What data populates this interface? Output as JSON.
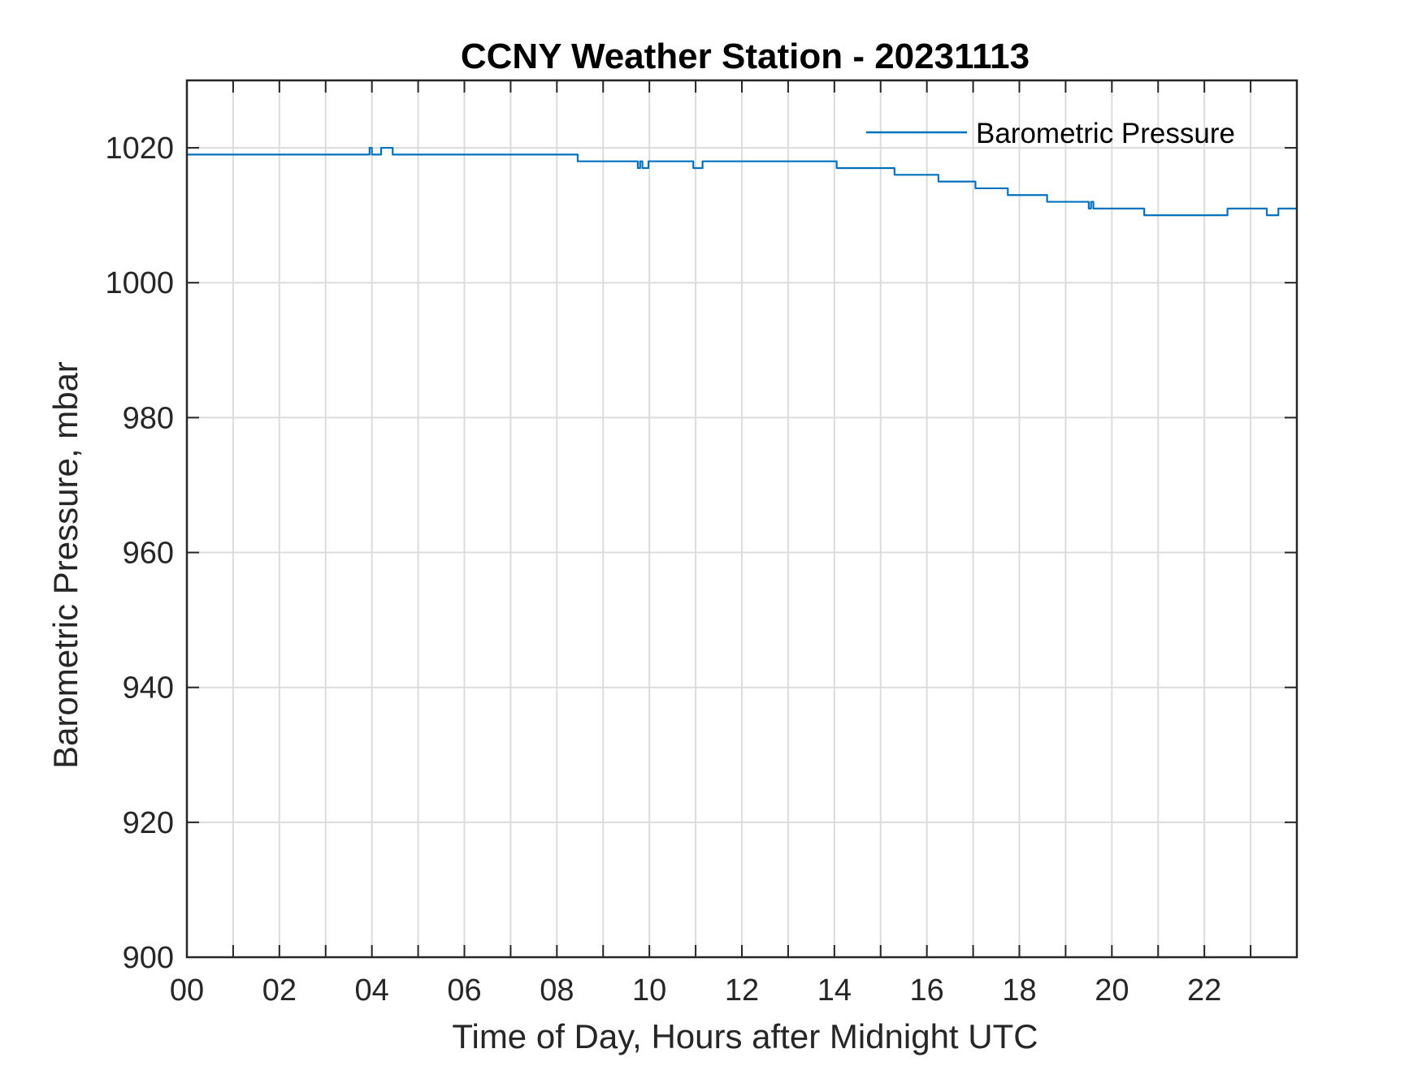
{
  "chart_data": {
    "type": "line",
    "title": "CCNY Weather Station - 20231113",
    "xlabel": "Time of Day, Hours after Midnight UTC",
    "ylabel": "Barometric Pressure, mbar",
    "xlim": [
      0,
      24
    ],
    "ylim": [
      900,
      1030
    ],
    "xticks": [
      0,
      2,
      4,
      6,
      8,
      10,
      12,
      14,
      16,
      18,
      20,
      22
    ],
    "xtick_labels": [
      "00",
      "02",
      "04",
      "06",
      "08",
      "10",
      "12",
      "14",
      "16",
      "18",
      "20",
      "22"
    ],
    "x_minor_gridlines": [
      1,
      3,
      5,
      7,
      9,
      11,
      13,
      15,
      17,
      19,
      21,
      23
    ],
    "yticks": [
      900,
      920,
      940,
      960,
      980,
      1000,
      1020
    ],
    "grid": true,
    "legend": "top-right",
    "colors": {
      "series": "#0072BD",
      "grid": "#DCDCDC",
      "axis": "#262626"
    },
    "series": [
      {
        "name": "Barometric Pressure",
        "x": [
          0,
          3.95,
          3.95,
          4.0,
          4.0,
          4.2,
          4.2,
          4.45,
          4.45,
          8.45,
          8.45,
          9.75,
          9.75,
          9.8,
          9.8,
          9.85,
          9.85,
          9.98,
          9.98,
          10.1,
          10.1,
          10.95,
          10.95,
          11.15,
          11.15,
          14.05,
          14.05,
          15.3,
          15.3,
          16.25,
          16.25,
          17.05,
          17.05,
          17.75,
          17.75,
          18.6,
          18.6,
          19.5,
          19.5,
          19.55,
          19.55,
          19.6,
          19.6,
          19.65,
          19.65,
          20.7,
          20.7,
          22.5,
          22.5,
          23.35,
          23.35,
          23.6,
          23.6,
          24
        ],
        "y": [
          1019,
          1019,
          1020,
          1020,
          1019,
          1019,
          1020,
          1020,
          1019,
          1019,
          1018,
          1018,
          1017,
          1017,
          1018,
          1018,
          1017,
          1017,
          1018,
          1018,
          1018,
          1018,
          1017,
          1017,
          1018,
          1018,
          1017,
          1017,
          1016,
          1016,
          1015,
          1015,
          1014,
          1014,
          1013,
          1013,
          1012,
          1012,
          1011,
          1011,
          1012,
          1012,
          1011,
          1011,
          1011,
          1011,
          1010,
          1010,
          1011,
          1011,
          1010,
          1010,
          1011,
          1011
        ]
      }
    ]
  }
}
